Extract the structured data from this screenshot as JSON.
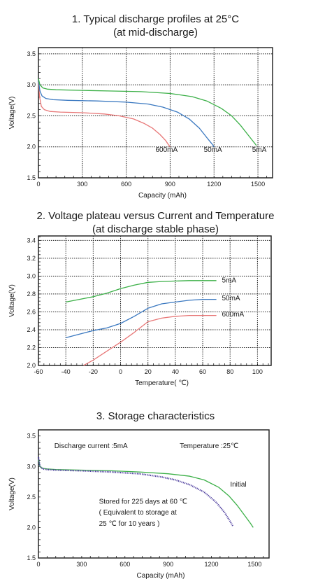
{
  "chart_data": [
    {
      "type": "line",
      "title": [
        "1. Typical discharge profiles at 25°C",
        "(at mid-discharge)"
      ],
      "xlabel": "Capacity (mAh)",
      "ylabel": "Voltage(V)",
      "xlim": [
        0,
        1600
      ],
      "ylim": [
        1.5,
        3.6
      ],
      "xticks": [
        0,
        300,
        600,
        900,
        1200,
        1500
      ],
      "yticks": [
        1.5,
        2.0,
        2.5,
        3.0,
        3.5
      ],
      "xtick_labels": [
        "0",
        "300",
        "600",
        "900",
        "1200",
        "1500"
      ],
      "ytick_labels": [
        "1.5",
        "2.0",
        "2.5",
        "3.0",
        "3.5"
      ],
      "grid": true,
      "series": [
        {
          "name": "600mA",
          "color": "#e87878",
          "x": [
            0,
            8,
            20,
            40,
            80,
            150,
            300,
            450,
            550,
            650,
            720,
            780,
            830,
            870,
            890,
            900
          ],
          "y": [
            3.05,
            2.8,
            2.65,
            2.6,
            2.57,
            2.56,
            2.55,
            2.53,
            2.5,
            2.45,
            2.38,
            2.3,
            2.2,
            2.1,
            2.03,
            2.0
          ]
        },
        {
          "name": "50mA",
          "color": "#3a78c0",
          "x": [
            0,
            10,
            25,
            50,
            100,
            200,
            400,
            600,
            750,
            850,
            950,
            1030,
            1100,
            1150,
            1185,
            1200
          ],
          "y": [
            3.08,
            2.9,
            2.82,
            2.78,
            2.76,
            2.75,
            2.74,
            2.72,
            2.69,
            2.64,
            2.56,
            2.45,
            2.3,
            2.15,
            2.05,
            2.0
          ]
        },
        {
          "name": "5mA",
          "color": "#3cb048",
          "x": [
            0,
            10,
            30,
            60,
            120,
            300,
            500,
            700,
            900,
            1050,
            1150,
            1250,
            1320,
            1380,
            1430,
            1470,
            1490
          ],
          "y": [
            3.1,
            3.0,
            2.95,
            2.93,
            2.92,
            2.91,
            2.9,
            2.89,
            2.86,
            2.81,
            2.74,
            2.62,
            2.5,
            2.35,
            2.2,
            2.08,
            2.02
          ]
        }
      ],
      "annotations": [
        {
          "text": "600mA",
          "x": 800,
          "y": 1.92
        },
        {
          "text": "50mA",
          "x": 1130,
          "y": 1.92
        },
        {
          "text": "5mA",
          "x": 1460,
          "y": 1.92
        }
      ]
    },
    {
      "type": "line",
      "title": [
        "2. Voltage plateau versus Current and Temperature",
        "(at discharge stable phase)"
      ],
      "xlabel": "Temperature( ℃)",
      "ylabel": "Voltage(V)",
      "xlim": [
        -60,
        110
      ],
      "ylim": [
        2.0,
        3.45
      ],
      "xticks": [
        -60,
        -40,
        -20,
        0,
        20,
        40,
        60,
        80,
        100
      ],
      "yticks": [
        2.0,
        2.2,
        2.4,
        2.6,
        2.8,
        3.0,
        3.2,
        3.4
      ],
      "xtick_labels": [
        "-60",
        "-40",
        "-20",
        "0",
        "20",
        "40",
        "60",
        "80",
        "100"
      ],
      "ytick_labels": [
        "2.0",
        "2.2",
        "2.4",
        "2.6",
        "2.8",
        "3.0",
        "3.2",
        "3.4"
      ],
      "grid": true,
      "series": [
        {
          "name": "5mA",
          "color": "#3cb048",
          "x": [
            -40,
            -30,
            -20,
            -10,
            0,
            10,
            20,
            30,
            40,
            50,
            60,
            70
          ],
          "y": [
            2.71,
            2.74,
            2.77,
            2.81,
            2.86,
            2.9,
            2.93,
            2.94,
            2.945,
            2.95,
            2.95,
            2.95
          ]
        },
        {
          "name": "50mA",
          "color": "#3a78c0",
          "x": [
            -40,
            -30,
            -20,
            -10,
            0,
            10,
            20,
            30,
            40,
            50,
            60,
            70
          ],
          "y": [
            2.31,
            2.35,
            2.39,
            2.42,
            2.47,
            2.55,
            2.64,
            2.69,
            2.71,
            2.73,
            2.74,
            2.74
          ]
        },
        {
          "name": "600mA",
          "color": "#e87878",
          "x": [
            -27,
            -20,
            -10,
            0,
            10,
            20,
            30,
            40,
            50,
            60,
            70
          ],
          "y": [
            2.0,
            2.06,
            2.16,
            2.26,
            2.37,
            2.49,
            2.53,
            2.55,
            2.56,
            2.56,
            2.56
          ]
        }
      ],
      "annotations": [
        {
          "text": "5mA",
          "x": 74,
          "y": 2.93
        },
        {
          "text": "50mA",
          "x": 74,
          "y": 2.73
        },
        {
          "text": "600mA",
          "x": 74,
          "y": 2.55
        }
      ]
    },
    {
      "type": "line",
      "title": [
        "3. Storage characteristics"
      ],
      "xlabel": "Capacity (mAh)",
      "ylabel": "Voltage(V)",
      "xlim": [
        0,
        1600
      ],
      "ylim": [
        1.5,
        3.6
      ],
      "xticks": [
        0,
        300,
        600,
        900,
        1200,
        1500
      ],
      "yticks": [
        1.5,
        2.0,
        2.5,
        3.0,
        3.5
      ],
      "xtick_labels": [
        "0",
        "300",
        "600",
        "900",
        "1200",
        "1500"
      ],
      "ytick_labels": [
        "1.5",
        "2.0",
        "2.5",
        "3.0",
        "3.5"
      ],
      "grid": false,
      "series": [
        {
          "name": "Initial",
          "color": "#3cb048",
          "x": [
            0,
            10,
            30,
            60,
            120,
            300,
            500,
            700,
            900,
            1050,
            1150,
            1250,
            1320,
            1380,
            1430,
            1470,
            1490
          ],
          "y": [
            3.12,
            3.0,
            2.97,
            2.96,
            2.95,
            2.94,
            2.93,
            2.91,
            2.88,
            2.84,
            2.78,
            2.66,
            2.52,
            2.36,
            2.2,
            2.07,
            2.0
          ]
        },
        {
          "name": "Stored for 225 days at 60 ℃",
          "color": "#4a3a9c",
          "x": [
            0,
            10,
            30,
            60,
            120,
            300,
            500,
            700,
            850,
            950,
            1050,
            1150,
            1230,
            1290,
            1330,
            1350
          ],
          "y": [
            3.15,
            3.0,
            2.96,
            2.95,
            2.94,
            2.93,
            2.91,
            2.88,
            2.83,
            2.78,
            2.7,
            2.58,
            2.42,
            2.25,
            2.1,
            2.02
          ]
        }
      ],
      "annotations": [
        {
          "text": "Discharge current  :5mA",
          "x": 110,
          "y": 3.3
        },
        {
          "text": "Temperature :25℃",
          "x": 980,
          "y": 3.3
        },
        {
          "text": "Initial",
          "x": 1330,
          "y": 2.67
        },
        {
          "text": "Stored for 225 days at 60    ℃",
          "x": 420,
          "y": 2.39
        },
        {
          "text": "( Equivalent to storage at",
          "x": 420,
          "y": 2.21
        },
        {
          "text": "25 ℃ for 10 years    )",
          "x": 420,
          "y": 2.03
        }
      ]
    }
  ]
}
